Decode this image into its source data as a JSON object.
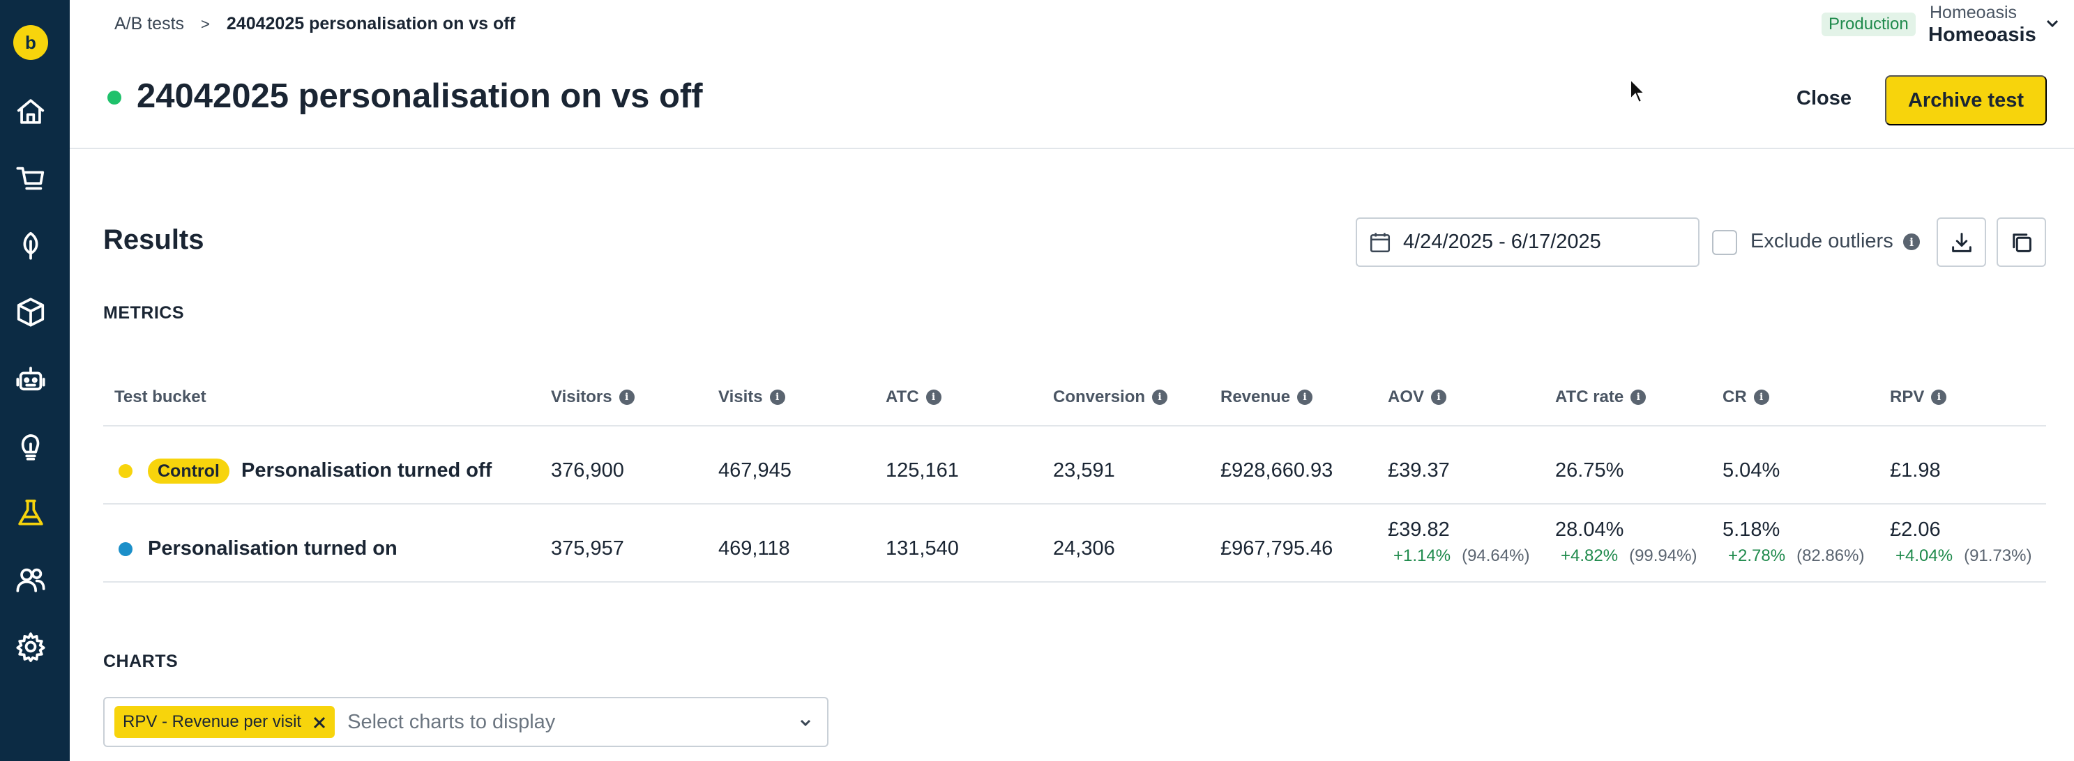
{
  "sidebar": {
    "logo_glyph": "b",
    "items": [
      {
        "icon": "home-icon"
      },
      {
        "icon": "cart-icon"
      },
      {
        "icon": "leaf-icon"
      },
      {
        "icon": "box-icon"
      },
      {
        "icon": "robot-icon"
      },
      {
        "icon": "lightbulb-icon"
      },
      {
        "icon": "flask-icon",
        "active": true
      },
      {
        "icon": "users-icon"
      },
      {
        "icon": "gear-icon"
      }
    ],
    "bg_color": "#0c2b44",
    "accent_color": "#f7d40c"
  },
  "header": {
    "breadcrumb_parent": "A/B tests",
    "breadcrumb_separator": ">",
    "breadcrumb_current": "24042025 personalisation on vs off",
    "environment": "Production",
    "account_sub": "Homeoasis",
    "account_name": "Homeoasis",
    "title": "24042025 personalisation on vs off",
    "status_color": "#1fc16b",
    "close_label": "Close",
    "archive_label": "Archive test"
  },
  "results": {
    "title": "Results",
    "date_range": "4/24/2025 - 6/17/2025",
    "exclude_outliers_label": "Exclude outliers",
    "exclude_outliers_checked": false,
    "metrics_label": "METRICS",
    "charts_label": "CHARTS"
  },
  "table": {
    "headers": {
      "bucket": "Test bucket",
      "visitors": "Visitors",
      "visits": "Visits",
      "atc": "ATC",
      "conversion": "Conversion",
      "revenue": "Revenue",
      "aov": "AOV",
      "atc_rate": "ATC rate",
      "cr": "CR",
      "rpv": "RPV"
    },
    "rows": [
      {
        "dot_color": "#f7d40c",
        "badge": "Control",
        "name": "Personalisation turned off",
        "visitors": "376,900",
        "visits": "467,945",
        "atc": "125,161",
        "conversion": "23,591",
        "revenue": "£928,660.93",
        "aov": "£39.37",
        "atc_rate": "26.75%",
        "cr": "5.04%",
        "rpv": "£1.98"
      },
      {
        "dot_color": "#1b8fc9",
        "name": "Personalisation turned on",
        "visitors": "375,957",
        "visits": "469,118",
        "atc": "131,540",
        "conversion": "24,306",
        "revenue": "£967,795.46",
        "aov": "£39.82",
        "aov_delta": "+1.14%",
        "aov_conf": "(94.64%)",
        "atc_rate": "28.04%",
        "atc_rate_delta": "+4.82%",
        "atc_rate_conf": "(99.94%)",
        "cr": "5.18%",
        "cr_delta": "+2.78%",
        "cr_conf": "(82.86%)",
        "rpv": "£2.06",
        "rpv_delta": "+4.04%",
        "rpv_conf": "(91.73%)"
      }
    ]
  },
  "charts": {
    "selected_chip": "RPV - Revenue per visit",
    "placeholder": "Select charts to display"
  }
}
